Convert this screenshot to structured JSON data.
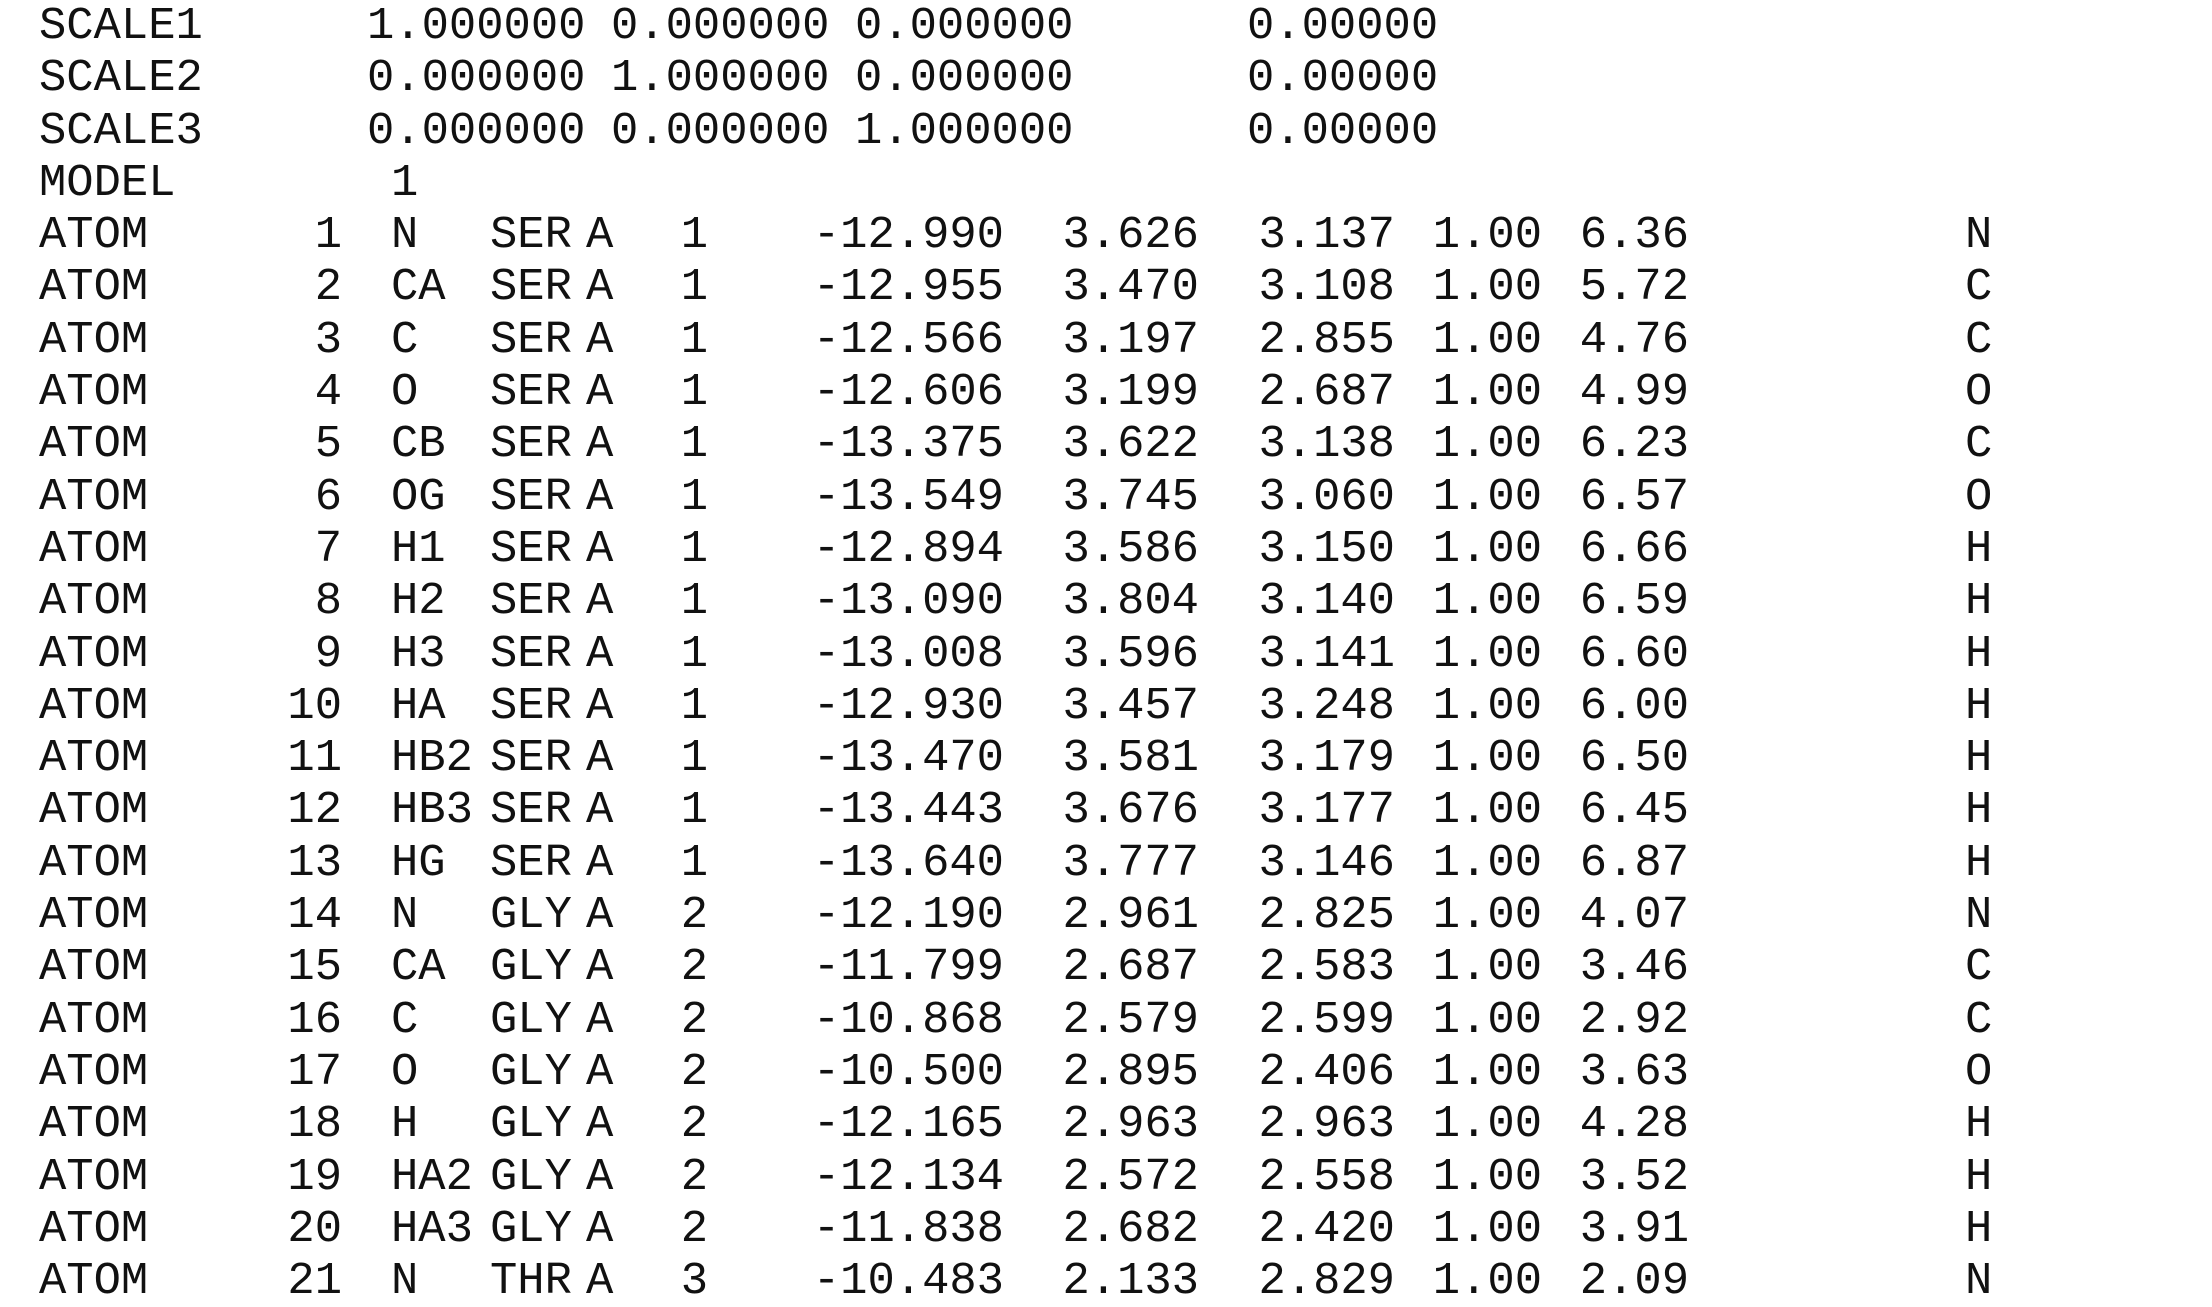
{
  "scale_records": [
    {
      "record": "SCALE1",
      "s1": "1.000000",
      "s2": "0.000000",
      "s3": "0.000000",
      "u": "0.00000"
    },
    {
      "record": "SCALE2",
      "s1": "0.000000",
      "s2": "1.000000",
      "s3": "0.000000",
      "u": "0.00000"
    },
    {
      "record": "SCALE3",
      "s1": "0.000000",
      "s2": "0.000000",
      "s3": "1.000000",
      "u": "0.00000"
    }
  ],
  "model": {
    "record": "MODEL",
    "serial": "1"
  },
  "atoms": [
    {
      "record": "ATOM",
      "serial": "1",
      "name": "N",
      "resName": "SER",
      "chain": "A",
      "resSeq": "1",
      "x": "-12.990",
      "y": "3.626",
      "z": "3.137",
      "occupancy": "1.00",
      "bfactor": "6.36",
      "element": "N"
    },
    {
      "record": "ATOM",
      "serial": "2",
      "name": "CA",
      "resName": "SER",
      "chain": "A",
      "resSeq": "1",
      "x": "-12.955",
      "y": "3.470",
      "z": "3.108",
      "occupancy": "1.00",
      "bfactor": "5.72",
      "element": "C"
    },
    {
      "record": "ATOM",
      "serial": "3",
      "name": "C",
      "resName": "SER",
      "chain": "A",
      "resSeq": "1",
      "x": "-12.566",
      "y": "3.197",
      "z": "2.855",
      "occupancy": "1.00",
      "bfactor": "4.76",
      "element": "C"
    },
    {
      "record": "ATOM",
      "serial": "4",
      "name": "O",
      "resName": "SER",
      "chain": "A",
      "resSeq": "1",
      "x": "-12.606",
      "y": "3.199",
      "z": "2.687",
      "occupancy": "1.00",
      "bfactor": "4.99",
      "element": "O"
    },
    {
      "record": "ATOM",
      "serial": "5",
      "name": "CB",
      "resName": "SER",
      "chain": "A",
      "resSeq": "1",
      "x": "-13.375",
      "y": "3.622",
      "z": "3.138",
      "occupancy": "1.00",
      "bfactor": "6.23",
      "element": "C"
    },
    {
      "record": "ATOM",
      "serial": "6",
      "name": "OG",
      "resName": "SER",
      "chain": "A",
      "resSeq": "1",
      "x": "-13.549",
      "y": "3.745",
      "z": "3.060",
      "occupancy": "1.00",
      "bfactor": "6.57",
      "element": "O"
    },
    {
      "record": "ATOM",
      "serial": "7",
      "name": "H1",
      "resName": "SER",
      "chain": "A",
      "resSeq": "1",
      "x": "-12.894",
      "y": "3.586",
      "z": "3.150",
      "occupancy": "1.00",
      "bfactor": "6.66",
      "element": "H"
    },
    {
      "record": "ATOM",
      "serial": "8",
      "name": "H2",
      "resName": "SER",
      "chain": "A",
      "resSeq": "1",
      "x": "-13.090",
      "y": "3.804",
      "z": "3.140",
      "occupancy": "1.00",
      "bfactor": "6.59",
      "element": "H"
    },
    {
      "record": "ATOM",
      "serial": "9",
      "name": "H3",
      "resName": "SER",
      "chain": "A",
      "resSeq": "1",
      "x": "-13.008",
      "y": "3.596",
      "z": "3.141",
      "occupancy": "1.00",
      "bfactor": "6.60",
      "element": "H"
    },
    {
      "record": "ATOM",
      "serial": "10",
      "name": "HA",
      "resName": "SER",
      "chain": "A",
      "resSeq": "1",
      "x": "-12.930",
      "y": "3.457",
      "z": "3.248",
      "occupancy": "1.00",
      "bfactor": "6.00",
      "element": "H"
    },
    {
      "record": "ATOM",
      "serial": "11",
      "name": "HB2",
      "resName": "SER",
      "chain": "A",
      "resSeq": "1",
      "x": "-13.470",
      "y": "3.581",
      "z": "3.179",
      "occupancy": "1.00",
      "bfactor": "6.50",
      "element": "H"
    },
    {
      "record": "ATOM",
      "serial": "12",
      "name": "HB3",
      "resName": "SER",
      "chain": "A",
      "resSeq": "1",
      "x": "-13.443",
      "y": "3.676",
      "z": "3.177",
      "occupancy": "1.00",
      "bfactor": "6.45",
      "element": "H"
    },
    {
      "record": "ATOM",
      "serial": "13",
      "name": "HG",
      "resName": "SER",
      "chain": "A",
      "resSeq": "1",
      "x": "-13.640",
      "y": "3.777",
      "z": "3.146",
      "occupancy": "1.00",
      "bfactor": "6.87",
      "element": "H"
    },
    {
      "record": "ATOM",
      "serial": "14",
      "name": "N",
      "resName": "GLY",
      "chain": "A",
      "resSeq": "2",
      "x": "-12.190",
      "y": "2.961",
      "z": "2.825",
      "occupancy": "1.00",
      "bfactor": "4.07",
      "element": "N"
    },
    {
      "record": "ATOM",
      "serial": "15",
      "name": "CA",
      "resName": "GLY",
      "chain": "A",
      "resSeq": "2",
      "x": "-11.799",
      "y": "2.687",
      "z": "2.583",
      "occupancy": "1.00",
      "bfactor": "3.46",
      "element": "C"
    },
    {
      "record": "ATOM",
      "serial": "16",
      "name": "C",
      "resName": "GLY",
      "chain": "A",
      "resSeq": "2",
      "x": "-10.868",
      "y": "2.579",
      "z": "2.599",
      "occupancy": "1.00",
      "bfactor": "2.92",
      "element": "C"
    },
    {
      "record": "ATOM",
      "serial": "17",
      "name": "O",
      "resName": "GLY",
      "chain": "A",
      "resSeq": "2",
      "x": "-10.500",
      "y": "2.895",
      "z": "2.406",
      "occupancy": "1.00",
      "bfactor": "3.63",
      "element": "O"
    },
    {
      "record": "ATOM",
      "serial": "18",
      "name": "H",
      "resName": "GLY",
      "chain": "A",
      "resSeq": "2",
      "x": "-12.165",
      "y": "2.963",
      "z": "2.963",
      "occupancy": "1.00",
      "bfactor": "4.28",
      "element": "H"
    },
    {
      "record": "ATOM",
      "serial": "19",
      "name": "HA2",
      "resName": "GLY",
      "chain": "A",
      "resSeq": "2",
      "x": "-12.134",
      "y": "2.572",
      "z": "2.558",
      "occupancy": "1.00",
      "bfactor": "3.52",
      "element": "H"
    },
    {
      "record": "ATOM",
      "serial": "20",
      "name": "HA3",
      "resName": "GLY",
      "chain": "A",
      "resSeq": "2",
      "x": "-11.838",
      "y": "2.682",
      "z": "2.420",
      "occupancy": "1.00",
      "bfactor": "3.91",
      "element": "H"
    },
    {
      "record": "ATOM",
      "serial": "21",
      "name": "N",
      "resName": "THR",
      "chain": "A",
      "resSeq": "3",
      "x": "-10.483",
      "y": "2.133",
      "z": "2.829",
      "occupancy": "1.00",
      "bfactor": "2.09",
      "element": "N"
    }
  ]
}
